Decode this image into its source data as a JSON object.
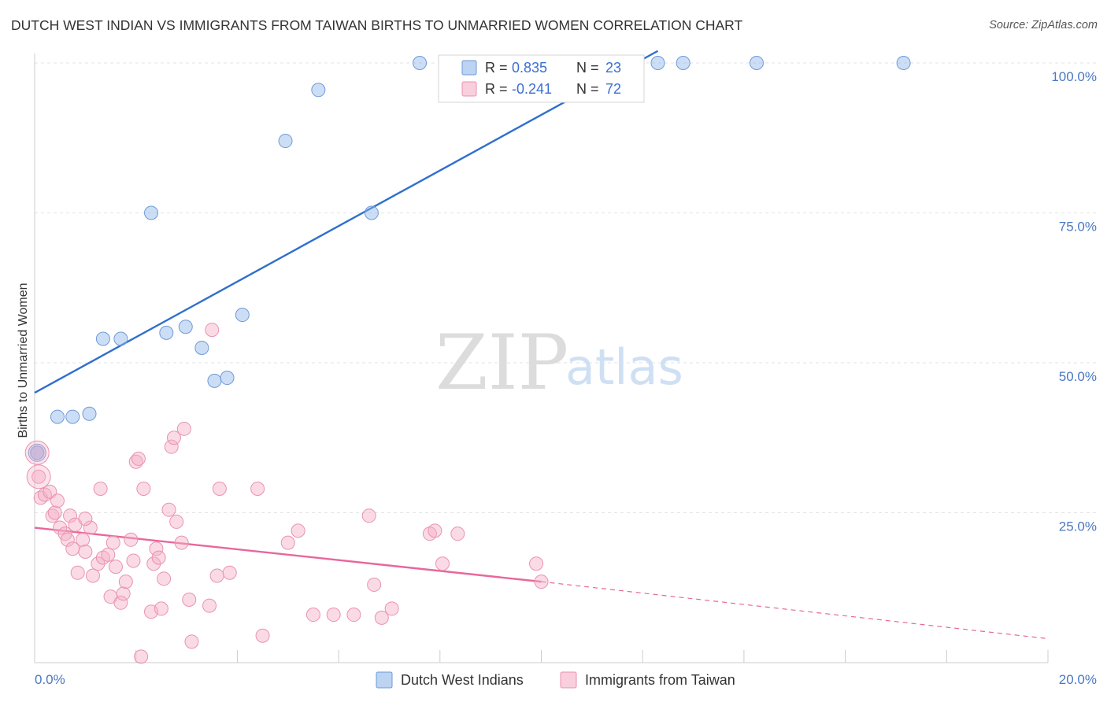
{
  "header": {
    "title": "DUTCH WEST INDIAN VS IMMIGRANTS FROM TAIWAN BIRTHS TO UNMARRIED WOMEN CORRELATION CHART",
    "source": "Source: ZipAtlas.com"
  },
  "watermark": {
    "part1": "ZIP",
    "part2": "atlas"
  },
  "chart_data": {
    "type": "scatter",
    "title": "DUTCH WEST INDIAN VS IMMIGRANTS FROM TAIWAN BIRTHS TO UNMARRIED WOMEN CORRELATION CHART",
    "xlabel": "",
    "ylabel": "Births to Unmarried Women",
    "xlim": [
      0,
      20
    ],
    "ylim": [
      0,
      102
    ],
    "x_ticks": [
      0,
      20
    ],
    "x_tick_labels": [
      "0.0%",
      "20.0%"
    ],
    "y_ticks": [
      25,
      50,
      75,
      100
    ],
    "y_tick_labels": [
      "25.0%",
      "50.0%",
      "75.0%",
      "100.0%"
    ],
    "grid": true,
    "legend_position": "top-center",
    "legend": [
      {
        "r_label": "R =",
        "r_value": "0.835",
        "n_label": "N =",
        "n_value": "23"
      },
      {
        "r_label": "R =",
        "r_value": "-0.241",
        "n_label": "N =",
        "n_value": "72"
      }
    ],
    "series": [
      {
        "name": "Dutch West Indians",
        "color": "#8fb5e8",
        "line_color": "#2f6fcc",
        "trend": {
          "x0": 0,
          "y0": 45,
          "x1": 12.3,
          "y1": 102,
          "dashed_to": null
        },
        "points": [
          [
            0.05,
            35
          ],
          [
            0.45,
            41
          ],
          [
            0.75,
            41
          ],
          [
            1.08,
            41.5
          ],
          [
            1.35,
            54
          ],
          [
            1.7,
            54
          ],
          [
            2.3,
            75
          ],
          [
            2.6,
            55
          ],
          [
            2.98,
            56
          ],
          [
            3.3,
            52.5
          ],
          [
            3.55,
            47
          ],
          [
            3.8,
            47.5
          ],
          [
            4.1,
            58
          ],
          [
            4.95,
            87
          ],
          [
            5.6,
            95.5
          ],
          [
            6.65,
            75
          ],
          [
            7.6,
            100
          ],
          [
            8.2,
            100
          ],
          [
            8.6,
            100
          ],
          [
            12.3,
            100
          ],
          [
            12.8,
            100
          ],
          [
            14.25,
            100
          ],
          [
            17.15,
            100
          ]
        ]
      },
      {
        "name": "Immigrants from Taiwan",
        "color": "#f5afc6",
        "line_color": "#e8679a",
        "trend": {
          "x0": 0,
          "y0": 22.5,
          "x1": 10,
          "y1": 13.5,
          "dashed_to": [
            20,
            4
          ]
        },
        "points": [
          [
            0.05,
            35
          ],
          [
            0.08,
            31
          ],
          [
            0.12,
            27.5
          ],
          [
            0.2,
            28
          ],
          [
            0.3,
            28.5
          ],
          [
            0.35,
            24.5
          ],
          [
            0.4,
            25
          ],
          [
            0.45,
            27
          ],
          [
            0.5,
            22.5
          ],
          [
            0.6,
            21.5
          ],
          [
            0.65,
            20.5
          ],
          [
            0.7,
            24.5
          ],
          [
            0.75,
            19
          ],
          [
            0.8,
            23
          ],
          [
            0.85,
            15
          ],
          [
            0.95,
            20.5
          ],
          [
            1.0,
            18.5
          ],
          [
            1.1,
            22.5
          ],
          [
            1.15,
            14.5
          ],
          [
            1.25,
            16.5
          ],
          [
            1.3,
            29
          ],
          [
            1.35,
            17.5
          ],
          [
            1.45,
            18
          ],
          [
            1.5,
            11
          ],
          [
            1.55,
            20
          ],
          [
            1.6,
            16
          ],
          [
            1.7,
            10
          ],
          [
            1.75,
            11.5
          ],
          [
            1.8,
            13.5
          ],
          [
            1.9,
            20.5
          ],
          [
            1.95,
            17
          ],
          [
            2.0,
            33.5
          ],
          [
            2.05,
            34
          ],
          [
            2.15,
            29
          ],
          [
            2.3,
            8.5
          ],
          [
            2.35,
            16.5
          ],
          [
            2.4,
            19
          ],
          [
            2.45,
            17.5
          ],
          [
            2.5,
            9
          ],
          [
            2.55,
            14
          ],
          [
            2.65,
            25.5
          ],
          [
            2.7,
            36
          ],
          [
            2.75,
            37.5
          ],
          [
            2.8,
            23.5
          ],
          [
            2.9,
            20
          ],
          [
            2.95,
            39
          ],
          [
            3.05,
            10.5
          ],
          [
            3.1,
            3.5
          ],
          [
            3.45,
            9.5
          ],
          [
            3.5,
            55.5
          ],
          [
            3.6,
            14.5
          ],
          [
            3.65,
            29
          ],
          [
            3.85,
            15
          ],
          [
            4.4,
            29
          ],
          [
            4.5,
            4.5
          ],
          [
            5.0,
            20
          ],
          [
            5.2,
            22
          ],
          [
            5.5,
            8
          ],
          [
            5.9,
            8
          ],
          [
            6.3,
            8
          ],
          [
            6.6,
            24.5
          ],
          [
            6.7,
            13
          ],
          [
            6.85,
            7.5
          ],
          [
            7.05,
            9
          ],
          [
            7.8,
            21.5
          ],
          [
            7.9,
            22
          ],
          [
            8.05,
            16.5
          ],
          [
            8.35,
            21.5
          ],
          [
            10.0,
            13.5
          ],
          [
            9.9,
            16.5
          ],
          [
            2.1,
            1
          ],
          [
            1.0,
            24
          ]
        ]
      }
    ],
    "big_points": [
      {
        "series": 0,
        "x": 0.05,
        "y": 35,
        "size": "large"
      },
      {
        "series": 1,
        "x": 0.05,
        "y": 35,
        "size": "large"
      },
      {
        "series": 1,
        "x": 0.08,
        "y": 31,
        "size": "large"
      }
    ]
  }
}
